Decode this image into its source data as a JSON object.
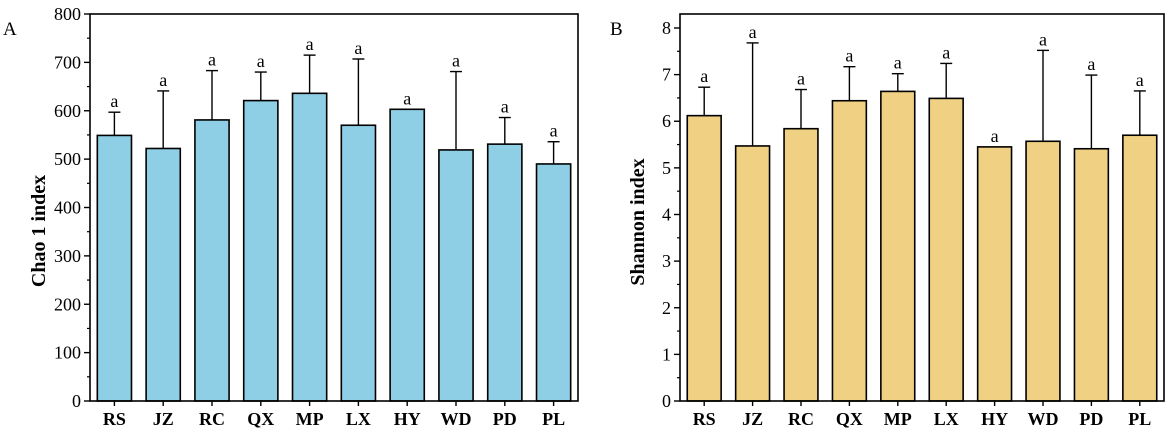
{
  "chart_data": [
    {
      "panel": "A",
      "type": "bar",
      "title": "",
      "xlabel": "",
      "ylabel": "Chao 1 index",
      "ylim": [
        0,
        800
      ],
      "yticks": [
        0,
        100,
        200,
        300,
        400,
        500,
        600,
        700,
        800
      ],
      "yticklabels": [
        "0",
        "100",
        "200",
        "300",
        "400",
        "500",
        "600",
        "700",
        "800"
      ],
      "grid": false,
      "categories": [
        "RS",
        "JZ",
        "RC",
        "QX",
        "MP",
        "LX",
        "HY",
        "WD",
        "PD",
        "PL"
      ],
      "values": [
        549,
        522,
        581,
        621,
        636,
        570,
        603,
        519,
        531,
        490
      ],
      "error_upper": [
        597,
        641,
        683,
        680,
        715,
        707,
        603,
        681,
        586,
        536
      ],
      "significance": [
        "a",
        "a",
        "a",
        "a",
        "a",
        "a",
        "a",
        "a",
        "a",
        "a"
      ],
      "bar_color": "#8ecfe6"
    },
    {
      "panel": "B",
      "type": "bar",
      "title": "",
      "xlabel": "",
      "ylabel": "Shannon index",
      "ylim": [
        0,
        8.3
      ],
      "yticks": [
        0,
        1,
        2,
        3,
        4,
        5,
        6,
        7,
        8
      ],
      "yticklabels": [
        "0",
        "1",
        "2",
        "3",
        "4",
        "5",
        "6",
        "7",
        "8"
      ],
      "grid": false,
      "categories": [
        "RS",
        "JZ",
        "RC",
        "QX",
        "MP",
        "LX",
        "HY",
        "WD",
        "PD",
        "PL"
      ],
      "values": [
        6.12,
        5.47,
        5.84,
        6.44,
        6.64,
        6.49,
        5.45,
        5.57,
        5.41,
        5.7
      ],
      "error_upper": [
        6.73,
        7.68,
        6.68,
        7.17,
        7.02,
        7.24,
        5.45,
        7.52,
        6.99,
        6.65
      ],
      "significance": [
        "a",
        "a",
        "a",
        "a",
        "a",
        "a",
        "a",
        "a",
        "a",
        "a"
      ],
      "bar_color": "#f0d082"
    }
  ],
  "colors": {
    "axis": "#000000",
    "bar_stroke": "#000000"
  }
}
